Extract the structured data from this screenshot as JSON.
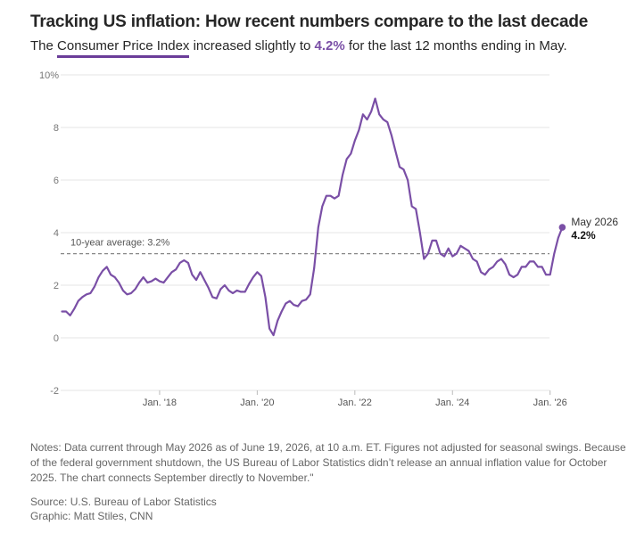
{
  "header": {
    "title": "Tracking US inflation: How recent numbers compare to the last decade",
    "subtitle_pre": "The ",
    "subtitle_link": "Consumer Price Index",
    "subtitle_mid": " increased slightly to ",
    "subtitle_value": "4.2%",
    "subtitle_post": " for the last 12 months ending in May."
  },
  "chart_data": {
    "type": "line",
    "x_start": "2016-01",
    "ylim": [
      -2,
      10
    ],
    "yticks": [
      -2,
      0,
      2,
      4,
      6,
      8,
      10
    ],
    "ytick_labels": [
      "-2",
      "0",
      "2",
      "4",
      "6",
      "8",
      "10%"
    ],
    "xticks": [
      "2018-01",
      "2020-01",
      "2022-01",
      "2024-01",
      "2026-01"
    ],
    "xtick_labels": [
      "Jan. '18",
      "Jan. '20",
      "Jan. '22",
      "Jan. '24",
      "Jan. '26"
    ],
    "reference_line": {
      "value": 3.2,
      "label": "10-year average: 3.2%"
    },
    "end_label": {
      "date": "May 2026",
      "value": "4.2%"
    },
    "series": [
      {
        "color": "#7a4fa6",
        "start": "2016-01",
        "values": [
          1.0,
          1.0,
          0.85,
          1.1,
          1.4,
          1.55,
          1.65,
          1.7,
          1.95,
          2.3,
          2.55,
          2.7,
          2.4,
          2.3,
          2.1,
          1.8,
          1.65,
          1.7,
          1.85,
          2.1,
          2.3,
          2.1,
          2.15,
          2.25,
          2.15,
          2.1,
          2.3,
          2.5,
          2.6,
          2.85,
          2.95,
          2.85,
          2.4,
          2.2,
          2.5,
          2.2,
          1.9,
          1.55,
          1.5,
          1.85,
          2.0,
          1.8,
          1.7,
          1.8,
          1.75,
          1.75,
          2.05,
          2.3,
          2.5,
          2.35,
          1.55,
          0.35,
          0.1,
          0.65,
          1.0,
          1.3,
          1.4,
          1.25,
          1.2,
          1.4,
          1.45,
          1.65,
          2.65,
          4.2,
          5.0,
          5.4,
          5.4,
          5.3,
          5.4,
          6.2,
          6.8,
          7.0,
          7.5,
          7.9,
          8.5,
          8.3,
          8.6,
          9.1,
          8.5,
          8.3,
          8.2,
          7.7,
          7.1,
          6.5,
          6.4,
          6.0,
          5.0,
          4.9,
          4.0,
          3.0,
          3.2,
          3.7,
          3.7,
          3.2,
          3.1,
          3.4,
          3.1,
          3.2,
          3.5,
          3.4,
          3.3,
          3.0,
          2.9,
          2.5,
          2.4,
          2.6,
          2.7,
          2.9,
          3.0,
          2.8,
          2.4,
          2.3,
          2.4,
          2.7,
          2.7,
          2.9,
          2.9,
          2.7,
          2.7,
          2.4,
          2.4,
          3.2,
          3.8,
          4.2
        ]
      }
    ]
  },
  "footer": {
    "notes": "Notes: Data current through May 2026 as of June 19, 2026, at 10 a.m. ET. Figures not adjusted for seasonal swings. Because of the federal government shutdown, the US Bureau of Labor Statistics didn’t release an annual inflation value for October 2025. The chart connects September directly to November.\"",
    "source": "Source: U.S. Bureau of Labor Statistics",
    "graphic": "Graphic: Matt Stiles, CNN"
  }
}
